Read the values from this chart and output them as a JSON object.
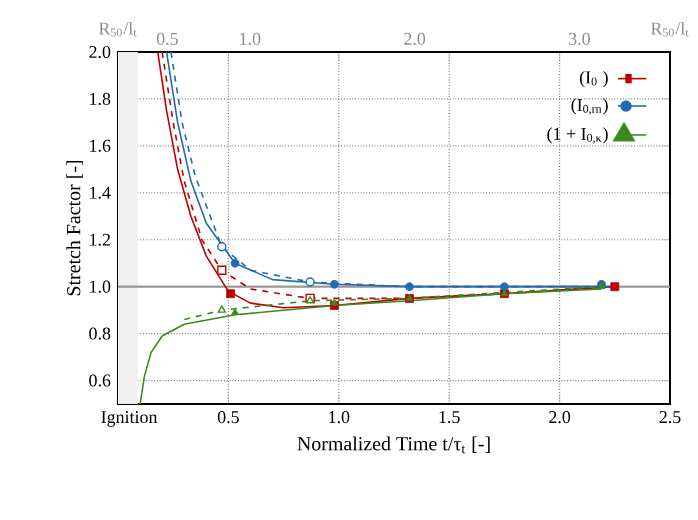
{
  "chart_data": {
    "type": "line",
    "xlabel": "Normalized Time t/τ$_{t}$ [-]",
    "ylabel": "Stretch Factor [-]",
    "xlim": [
      0,
      2.5
    ],
    "ylim": [
      0.5,
      2.0
    ],
    "xticks": [
      {
        "value": 0.05,
        "label": "Ignition"
      },
      {
        "value": 0.5,
        "label": "0.5"
      },
      {
        "value": 1.0,
        "label": "1.0"
      },
      {
        "value": 1.5,
        "label": "1.5"
      },
      {
        "value": 2.0,
        "label": "2.0"
      },
      {
        "value": 2.5,
        "label": "2.5"
      }
    ],
    "yticks": [
      {
        "value": 0.6,
        "label": "0.6"
      },
      {
        "value": 0.8,
        "label": "0.8"
      },
      {
        "value": 1.0,
        "label": "1.0"
      },
      {
        "value": 1.2,
        "label": "1.2"
      },
      {
        "value": 1.4,
        "label": "1.4"
      },
      {
        "value": 1.6,
        "label": "1.6"
      },
      {
        "value": 1.8,
        "label": "1.8"
      },
      {
        "value": 2.0,
        "label": "2.0"
      }
    ],
    "x2lim": [
      0.2,
      3.55
    ],
    "x2label": "R$_{50}$/l$_{t}$",
    "x2ticks": [
      0.5,
      {
        "value": 1.0,
        "label": "1.0"
      },
      {
        "value": 2.0,
        "label": "2.0"
      },
      {
        "value": 3.0,
        "label": "3.0"
      }
    ],
    "grid": true,
    "legend": "top right",
    "ref_lines": [
      {
        "axis": "y",
        "value": 1.0,
        "color": "#999999"
      }
    ],
    "bands": [
      {
        "axis": "x",
        "from": 0,
        "to": 0.09,
        "color": "#f0f0f0"
      }
    ],
    "series": [
      {
        "color": "#c00000",
        "line_style": "solid",
        "x": [
          0.18,
          0.22,
          0.27,
          0.33,
          0.4,
          0.5,
          0.6,
          0.75,
          0.98,
          1.32,
          1.75,
          2.25
        ],
        "values": [
          2.0,
          1.75,
          1.5,
          1.3,
          1.13,
          0.98,
          0.93,
          0.91,
          0.92,
          0.95,
          0.97,
          1.0
        ]
      },
      {
        "color": "#c00000",
        "line_style": "dashed",
        "x": [
          0.2,
          0.25,
          0.3,
          0.38,
          0.47,
          0.6,
          0.87,
          1.3,
          1.75,
          2.25
        ],
        "values": [
          2.0,
          1.7,
          1.45,
          1.2,
          1.07,
          0.99,
          0.95,
          0.95,
          0.97,
          1.0
        ]
      },
      {
        "color": "#1f6bb5",
        "line_style": "solid",
        "x": [
          0.22,
          0.27,
          0.33,
          0.4,
          0.53,
          0.7,
          0.98,
          1.32,
          1.75,
          2.25
        ],
        "values": [
          2.0,
          1.7,
          1.45,
          1.27,
          1.1,
          1.03,
          1.01,
          1.0,
          1.0,
          1.0
        ]
      },
      {
        "color": "#1f6bb5",
        "line_style": "dashed",
        "x": [
          0.24,
          0.29,
          0.35,
          0.47,
          0.6,
          0.87,
          1.3,
          2.25
        ],
        "values": [
          2.0,
          1.7,
          1.47,
          1.17,
          1.07,
          1.02,
          1.0,
          1.0
        ]
      },
      {
        "color": "#3a8a1e",
        "line_style": "solid",
        "x": [
          0.1,
          0.12,
          0.15,
          0.2,
          0.3,
          0.53,
          0.98,
          1.32,
          1.75,
          2.19
        ],
        "values": [
          0.5,
          0.62,
          0.72,
          0.79,
          0.84,
          0.88,
          0.92,
          0.94,
          0.97,
          0.99
        ]
      },
      {
        "color": "#3a8a1e",
        "line_style": "dashed",
        "x": [
          0.3,
          0.47,
          0.87,
          1.3,
          2.19
        ],
        "values": [
          0.86,
          0.9,
          0.94,
          0.95,
          1.0
        ]
      },
      {
        "type": "scatter",
        "color": "#c00000",
        "marker": "square",
        "x": [
          0.47,
          0.87
        ],
        "values": [
          1.07,
          0.95
        ]
      },
      {
        "type": "scatter",
        "color": "#1f6bb5",
        "marker": "circle",
        "x": [
          0.47,
          0.87
        ],
        "values": [
          1.17,
          1.02
        ]
      },
      {
        "type": "scatter",
        "color": "#3a8a1e",
        "marker": "triangle",
        "x": [
          0.47,
          0.87
        ],
        "values": [
          0.9,
          0.94
        ]
      },
      {
        "name": "(I$_{0}$ )",
        "type": "scatter",
        "color": "#c00000",
        "marker": "square",
        "x": [
          0.51,
          0.98,
          1.32,
          1.75,
          2.25
        ],
        "values": [
          0.97,
          0.92,
          0.95,
          0.97,
          1.0
        ]
      },
      {
        "name": "(I$_{0,rn}$)",
        "type": "scatter",
        "color": "#1f6bb5",
        "marker": "circle",
        "x": [
          0.53,
          0.98,
          1.32,
          1.75,
          2.19
        ],
        "values": [
          1.1,
          1.01,
          1.0,
          1.0,
          1.01
        ]
      },
      {
        "name": "(1 + I$_{0,κ}$)",
        "type": "scatter",
        "color": "#3a8a1e",
        "marker": "triangle",
        "x": [
          0.53,
          0.98,
          1.32,
          1.75,
          2.19
        ],
        "values": [
          0.89,
          0.93,
          0.95,
          0.97,
          1.0
        ]
      }
    ]
  }
}
